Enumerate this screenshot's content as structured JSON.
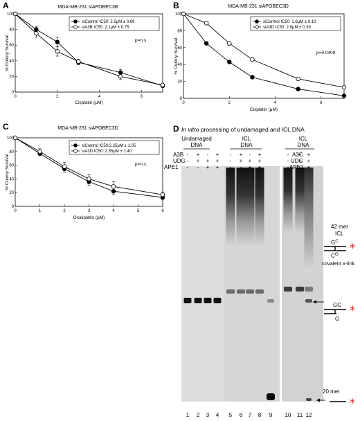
{
  "panels": {
    "A": {
      "letter": "A",
      "title": "MDA-MB-231 siAPOBEC3B"
    },
    "B": {
      "letter": "B",
      "title": "MDA-MB-231 siAPOBEC3D"
    },
    "C": {
      "letter": "C",
      "title": "MDA-MB-231 siAPOBEC3D"
    },
    "D": {
      "letter": "D",
      "title_italic": "In vitro",
      "title_rest": " processing of undamaged and ICL DNA"
    }
  },
  "chart_data": [
    {
      "id": "A",
      "type": "line",
      "title": "MDA-MB-231 siAPOBEC3B",
      "xlabel": "Cisplatin (μM)",
      "ylabel": "% Colony Survival",
      "xlim": [
        0,
        7
      ],
      "ylim": [
        0,
        100
      ],
      "xticks": [
        0,
        2,
        4,
        6
      ],
      "yticks": [
        0,
        20,
        40,
        60,
        80,
        100
      ],
      "annotation": "p=n.s",
      "legend_position": "top-right",
      "error_bars": true,
      "series": [
        {
          "name": "siControl IC50: 2.5μM ± 0.89",
          "marker": "filled",
          "x": [
            0,
            1,
            2,
            3,
            5,
            7
          ],
          "y": [
            100,
            80,
            64,
            38,
            25,
            8
          ],
          "err": [
            0,
            4,
            6,
            3,
            4,
            2
          ]
        },
        {
          "name": "siA3B IC50: 2.1μM ± 0.75",
          "marker": "open",
          "x": [
            0,
            1,
            2,
            3,
            5,
            7
          ],
          "y": [
            100,
            75,
            52,
            39,
            20,
            9
          ],
          "err": [
            0,
            5,
            6,
            3,
            4,
            2
          ]
        }
      ]
    },
    {
      "id": "B",
      "type": "line",
      "title": "MDA-MB-231 siAPOBEC3D",
      "xlabel": "Cisplatin (μM)",
      "ylabel": "% Colony Survival",
      "xlim": [
        0,
        7
      ],
      "ylim": [
        0,
        100
      ],
      "xticks": [
        0,
        2,
        4,
        6
      ],
      "yticks": [
        0,
        20,
        40,
        60,
        80,
        100
      ],
      "annotation": "p=0.0409",
      "legend_position": "top-right",
      "error_bars": true,
      "series": [
        {
          "name": "siControl IC50: 1.6μM ± 0.10",
          "marker": "filled",
          "x": [
            0,
            1,
            2,
            3,
            5,
            7
          ],
          "y": [
            100,
            65,
            43,
            25,
            11,
            3
          ],
          "err": [
            0,
            1,
            2,
            1,
            1,
            1
          ]
        },
        {
          "name": "siA3D IC50: 2.8μM ± 0.39",
          "marker": "open",
          "x": [
            0,
            1,
            2,
            3,
            5,
            7
          ],
          "y": [
            100,
            89,
            65,
            46,
            23,
            13
          ],
          "err": [
            0,
            2,
            2,
            2,
            1,
            1
          ]
        }
      ]
    },
    {
      "id": "C",
      "type": "line",
      "title": "MDA-MB-231 siAPOBEC3D",
      "xlabel": "Oxaliplatin (μM)",
      "ylabel": "% Colony Survival",
      "xlim": [
        0,
        6
      ],
      "ylim": [
        0,
        100
      ],
      "xticks": [
        0,
        1,
        2,
        3,
        4,
        5,
        6
      ],
      "yticks": [
        0,
        20,
        40,
        60,
        80,
        100
      ],
      "annotation": "p=n.s",
      "legend_position": "top-right",
      "error_bars": true,
      "series": [
        {
          "name": "siControl IC50:2.25μM ± 1.05",
          "marker": "filled",
          "x": [
            0,
            1,
            2,
            3,
            4,
            6
          ],
          "y": [
            100,
            77,
            55,
            36,
            22,
            13
          ],
          "err": [
            0,
            3,
            5,
            5,
            5,
            3
          ]
        },
        {
          "name": "siA3D  IC50: 2.55μM ± 1.40",
          "marker": "open",
          "x": [
            0,
            1,
            2,
            3,
            4,
            6
          ],
          "y": [
            100,
            80,
            58,
            40,
            29,
            17
          ],
          "err": [
            0,
            4,
            6,
            7,
            7,
            4
          ]
        }
      ]
    }
  ],
  "gel": {
    "group_labels": {
      "undamaged": [
        "Undamaged",
        "DNA"
      ],
      "icl_left": [
        "ICL",
        "DNA"
      ],
      "icl_right": [
        "ICL",
        "DNA"
      ]
    },
    "row_labels_left": [
      "A3B",
      "UDG",
      "APE1"
    ],
    "row_labels_right": [
      "A3C",
      "UDG",
      "APE1"
    ],
    "row_values": {
      "undamaged": [
        [
          "-",
          "+",
          "-",
          "+"
        ],
        [
          "-",
          "+",
          "+",
          "+"
        ],
        [
          "-",
          "-",
          "+",
          "+"
        ]
      ],
      "icl_left": [
        [
          "-",
          "+",
          "-",
          "+"
        ],
        [
          "-",
          "+",
          "+",
          "+"
        ],
        [
          "-",
          "-",
          "+",
          "+"
        ]
      ],
      "icl_right": [
        [
          "-",
          "+",
          "+"
        ],
        [
          "-",
          "+",
          "+"
        ],
        [
          "-",
          "-",
          "+"
        ]
      ]
    },
    "lane_numbers": [
      "1",
      "2",
      "3",
      "4",
      "5",
      "6",
      "7",
      "8",
      "9",
      "10",
      "11",
      "12"
    ],
    "annotations": {
      "top": [
        "42 mer",
        "ICL"
      ],
      "covalent": "covalent x-link",
      "bottom": "20 mer",
      "gc_top": "G",
      "gc_top_sup": "C",
      "cg_bottom": "C",
      "cg_bottom_sup": "G",
      "gc_mid": "GC",
      "g_mid": "G"
    },
    "colors": {
      "asterisk": "#e31a1c"
    }
  }
}
